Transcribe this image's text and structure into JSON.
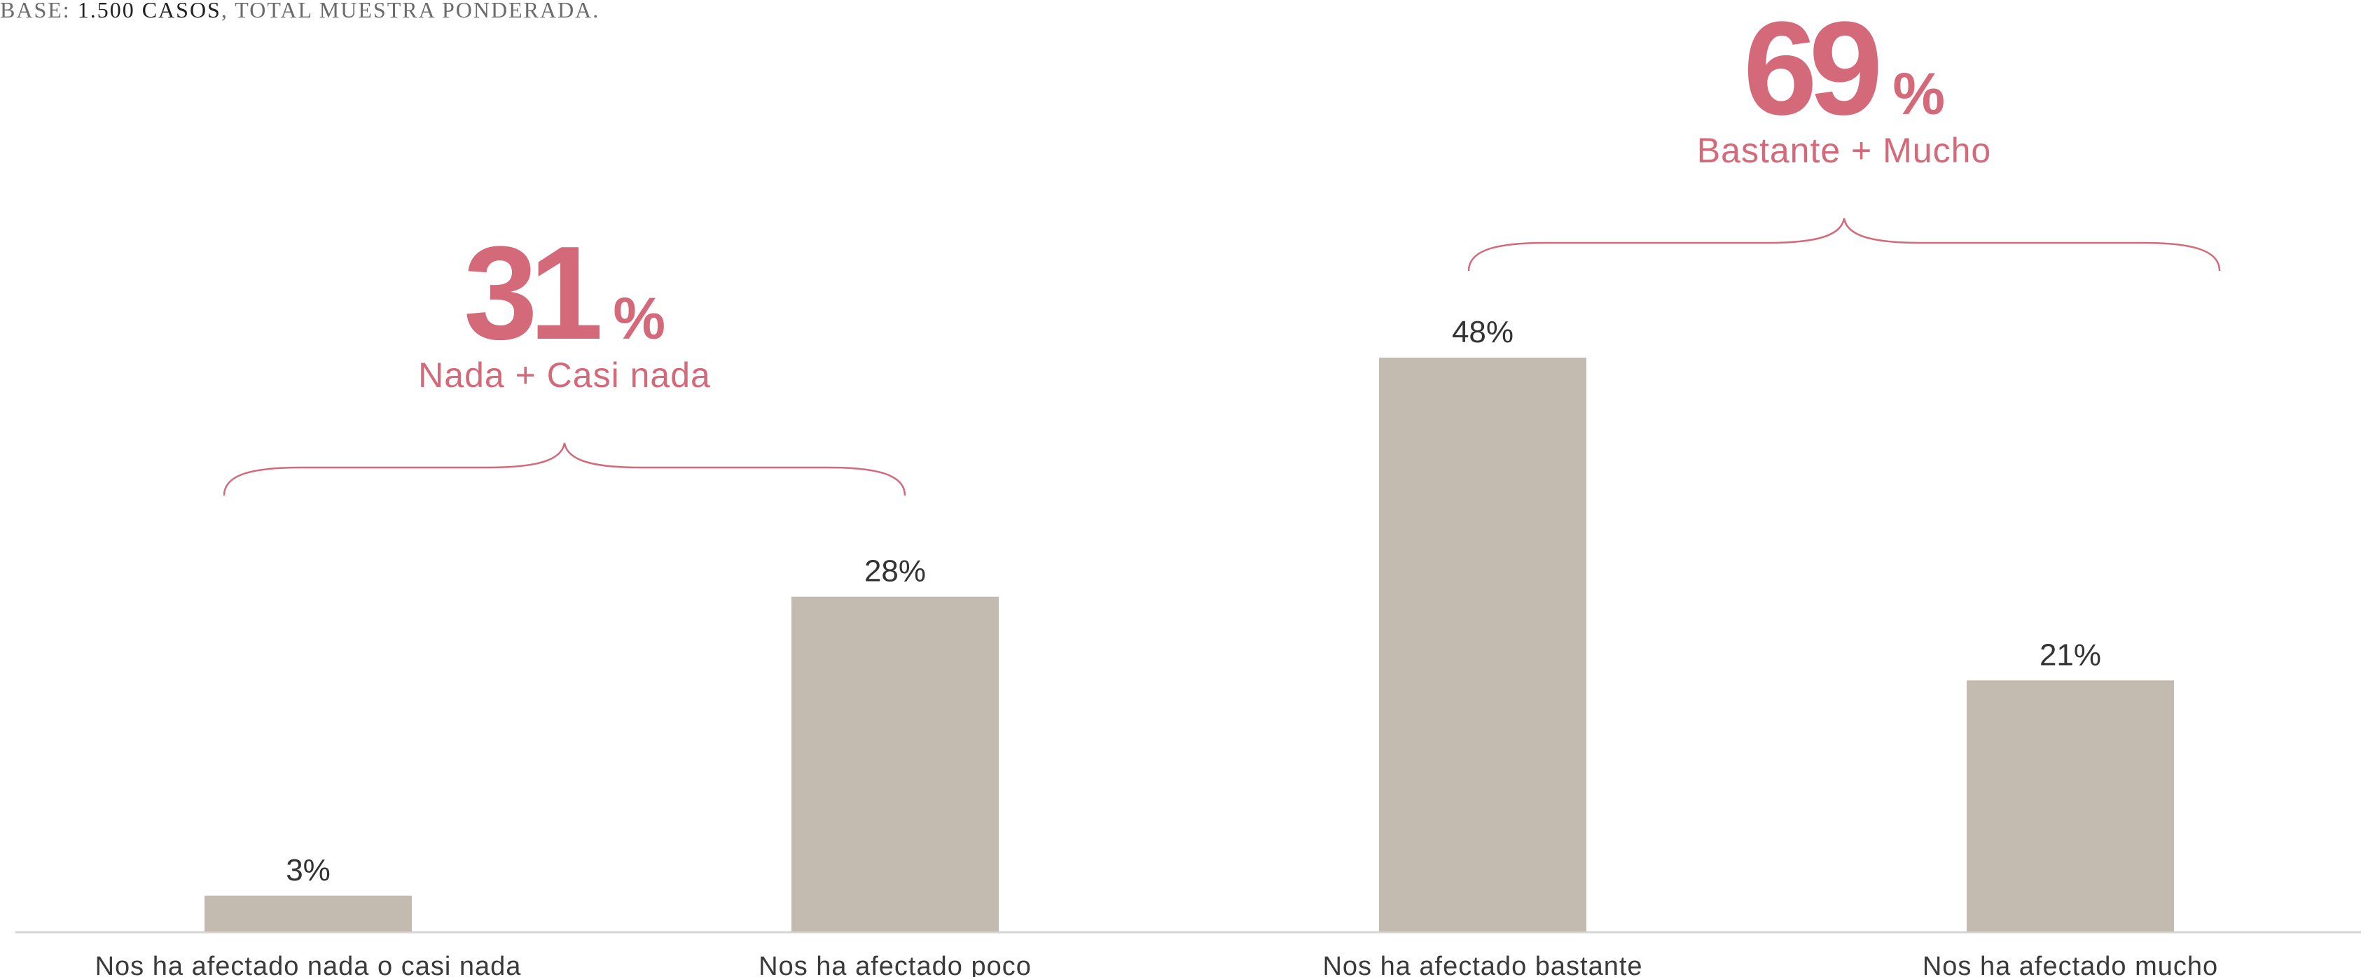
{
  "note": {
    "prefix": "BASE:",
    "strong": "1.500 CASOS",
    "rest": ", TOTAL MUESTRA PONDERADA."
  },
  "colors": {
    "bar": "#c3bbaf",
    "accent": "#d4697a",
    "text": "#333333",
    "axis": "#d6d6d6"
  },
  "chart_data": {
    "type": "bar",
    "categories": [
      "Nos ha afectado nada o casi nada",
      "Nos ha afectado poco",
      "Nos ha afectado bastante",
      "Nos ha afectado mucho"
    ],
    "values": [
      3,
      28,
      48,
      21
    ],
    "value_labels": [
      "3%",
      "28%",
      "48%",
      "21%"
    ],
    "ylim": [
      0,
      48
    ],
    "grid": false,
    "groups": [
      {
        "value": "31",
        "unit": "%",
        "label": "Nada + Casi nada",
        "from": 0,
        "to": 1
      },
      {
        "value": "69",
        "unit": "%",
        "label": "Bastante + Mucho",
        "from": 2,
        "to": 3
      }
    ]
  }
}
